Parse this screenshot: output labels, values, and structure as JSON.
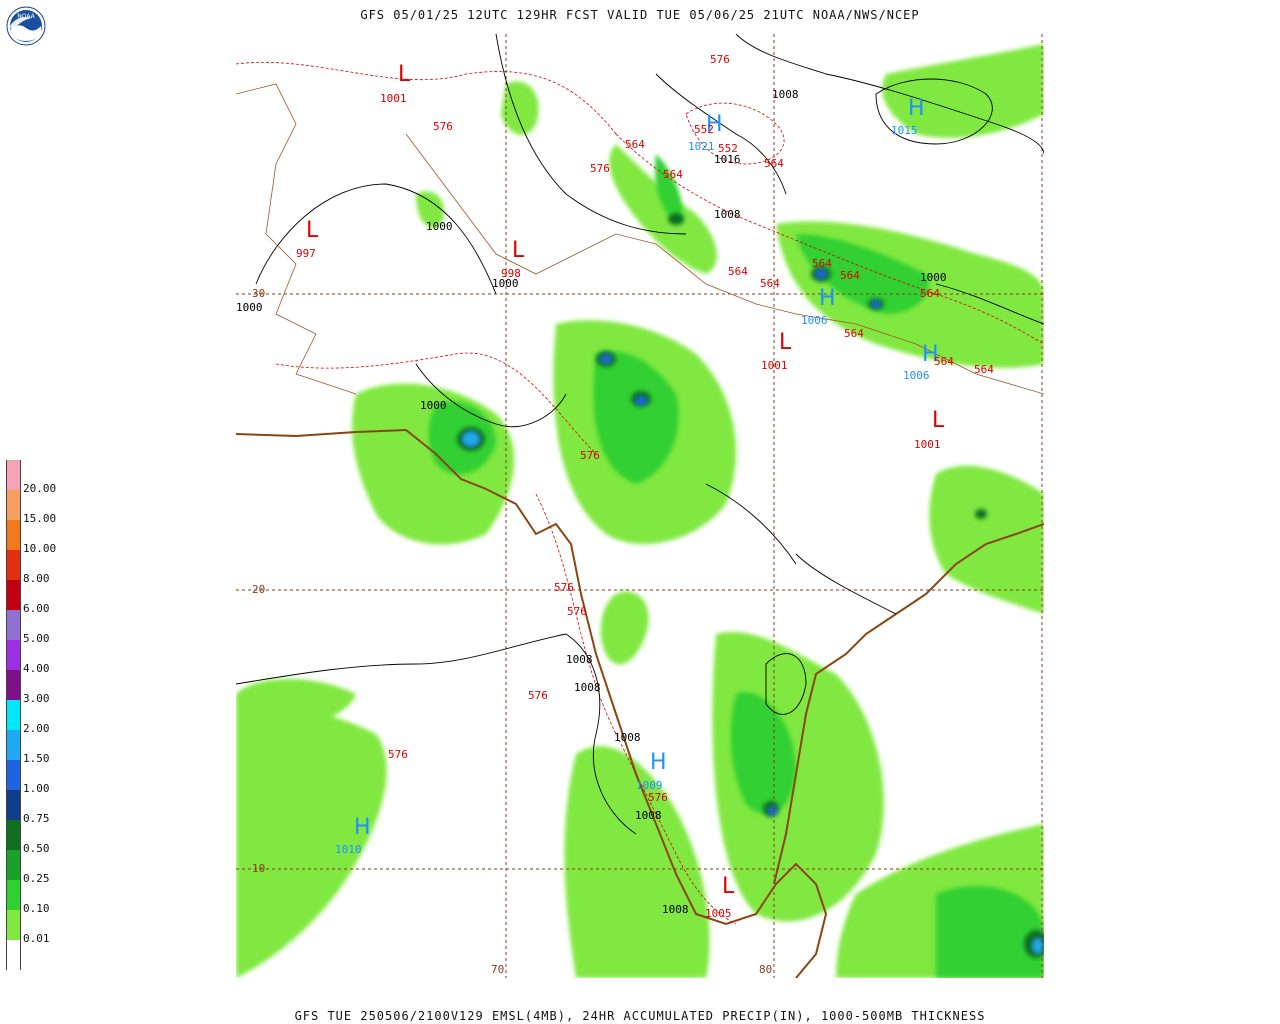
{
  "header": {
    "title": "GFS 05/01/25 12UTC 129HR FCST VALID TUE 05/06/25 21UTC NOAA/NWS/NCEP",
    "footer": "GFS TUE 250506/2100V129 EMSL(4MB), 24HR ACCUMULATED PRECIP(IN), 1000-500MB THICKNESS"
  },
  "logo": {
    "icon": "noaa-logo-icon",
    "text": "NOAA"
  },
  "legend": {
    "items": [
      {
        "label": "20.00",
        "color": "#f4a3b7"
      },
      {
        "label": "15.00",
        "color": "#f5a060"
      },
      {
        "label": "10.00",
        "color": "#f07a1c"
      },
      {
        "label": "8.00",
        "color": "#e03010"
      },
      {
        "label": "6.00",
        "color": "#c00010"
      },
      {
        "label": "5.00",
        "color": "#9070d0"
      },
      {
        "label": "4.00",
        "color": "#9a30e0"
      },
      {
        "label": "3.00",
        "color": "#80108a"
      },
      {
        "label": "2.00",
        "color": "#00e8f8"
      },
      {
        "label": "1.50",
        "color": "#20a8f0"
      },
      {
        "label": "1.00",
        "color": "#1e64e0"
      },
      {
        "label": "0.75",
        "color": "#103c8c"
      },
      {
        "label": "0.50",
        "color": "#107020"
      },
      {
        "label": "0.25",
        "color": "#18a028"
      },
      {
        "label": "0.10",
        "color": "#30d030"
      },
      {
        "label": "0.01",
        "color": "#80e840"
      },
      {
        "label": "",
        "color": "#ffffff"
      }
    ]
  },
  "gridlines": {
    "lat_labels": [
      "30",
      "20",
      "10"
    ],
    "lon_labels": [
      "70",
      "80"
    ]
  },
  "map_labels": {
    "pressure_centers": [
      {
        "type": "L",
        "value": "1001",
        "color": "red"
      },
      {
        "type": "L",
        "value": "997",
        "color": "red"
      },
      {
        "type": "L",
        "value": "998",
        "color": "red"
      },
      {
        "type": "H",
        "value": "1021",
        "color": "cyan"
      },
      {
        "type": "H",
        "value": "1015",
        "color": "cyan"
      },
      {
        "type": "H",
        "value": "1006",
        "color": "cyan"
      },
      {
        "type": "H",
        "value": "1006",
        "color": "cyan"
      },
      {
        "type": "L",
        "value": "1001",
        "color": "red"
      },
      {
        "type": "L",
        "value": "1001",
        "color": "red"
      },
      {
        "type": "H",
        "value": "1009",
        "color": "cyan"
      },
      {
        "type": "H",
        "value": "1010",
        "color": "cyan"
      },
      {
        "type": "L",
        "value": "1005",
        "color": "red"
      }
    ],
    "isobars": [
      "1008",
      "1016",
      "1008",
      "1000",
      "1000",
      "1000",
      "1000",
      "1000",
      "1008",
      "1008",
      "1008",
      "1008",
      "1008"
    ],
    "thickness": [
      "576",
      "576",
      "552",
      "552",
      "564",
      "564",
      "576",
      "564",
      "564",
      "564",
      "564",
      "564",
      "564",
      "564",
      "564",
      "564",
      "576",
      "576",
      "576",
      "576",
      "576",
      "576"
    ]
  }
}
